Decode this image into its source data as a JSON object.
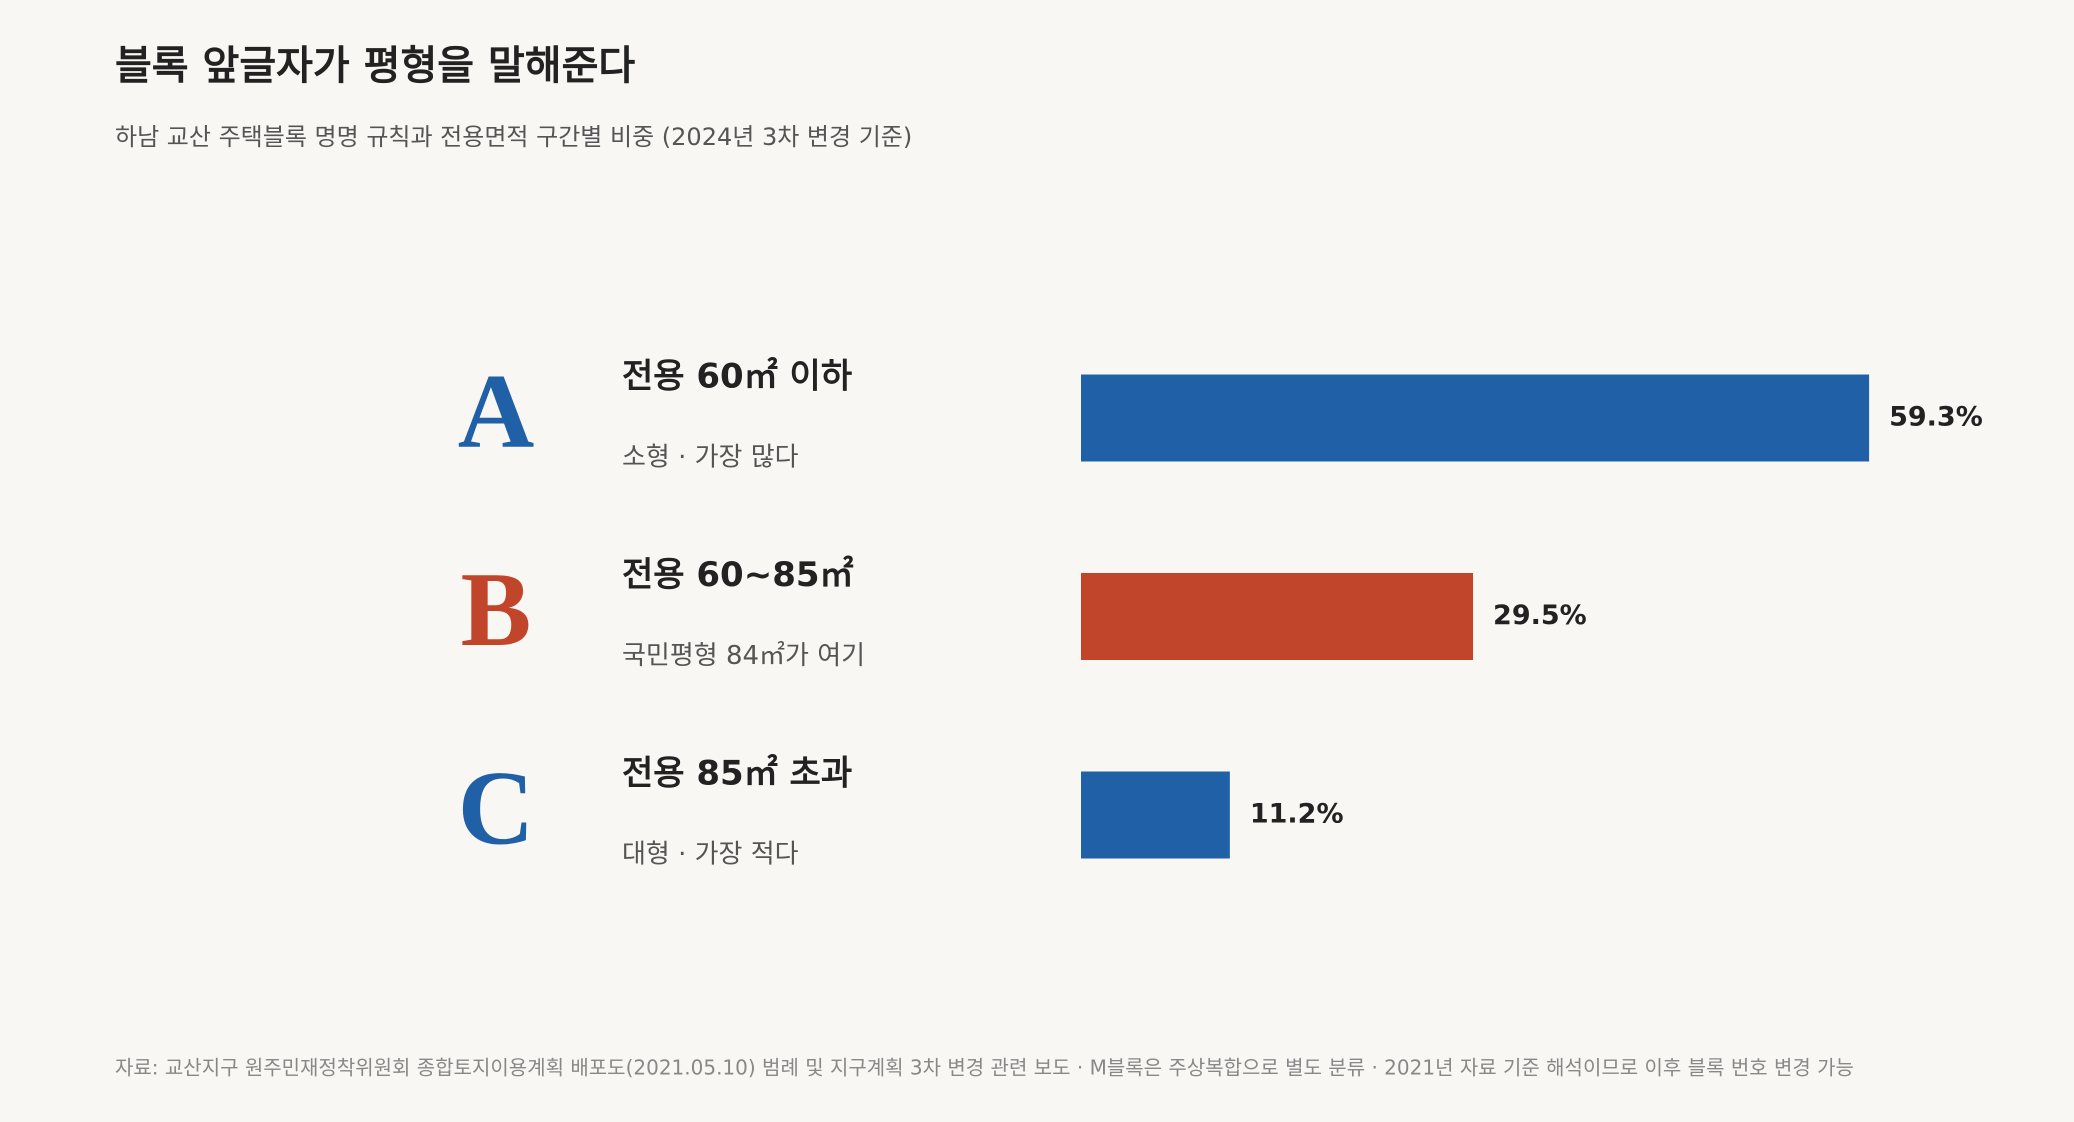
{
  "chart_data": {
    "type": "bar",
    "title": "블록 앞글자가 평형을 말해준다",
    "subtitle": "하남 교산 주택블록 명명 규칙과 전용면적 구간별 비중 (2024년 3차 변경 기준)",
    "categories": [
      "A",
      "B",
      "C"
    ],
    "category_labels": [
      "전용 60㎡ 이하",
      "전용 60~85㎡",
      "전용 85㎡ 초과"
    ],
    "category_notes": [
      "소형 · 가장 많다",
      "국민평형 84㎡가 여기",
      "대형 · 가장 적다"
    ],
    "values": [
      59.3,
      29.5,
      11.2
    ],
    "value_labels": [
      "59.3%",
      "29.5%",
      "11.2%"
    ],
    "colors": [
      "#2060a6",
      "#c0452a",
      "#2060a6"
    ],
    "source": "자료: 교산지구 원주민재정착위원회 종합토지이용계획 배포도(2021.05.10) 범례 및 지구계획 3차 변경 관련 보도 · M블록은 주상복합으로 별도 분류 · 2021년 자료 기준 해석이므로 이후 블록 번호 변경 가능"
  }
}
